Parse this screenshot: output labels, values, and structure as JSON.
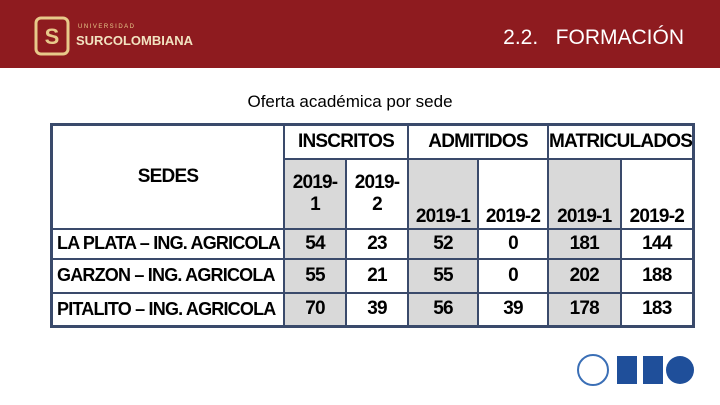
{
  "header": {
    "logo_small": "UNIVERSIDAD",
    "logo_name": "SURCOLOMBIANA",
    "title": "2.2.   FORMACIÓN"
  },
  "subtitle": "Oferta académica por sede",
  "table": {
    "sedes_header": "SEDES",
    "groups": [
      "INSCRITOS",
      "ADMITIDOS",
      "MATRICULADOS"
    ],
    "periods": [
      "2019-1",
      "2019-2",
      "2019-1",
      "2019-2",
      "2019-1",
      "2019-2"
    ],
    "rows": [
      [
        "LA PLATA – ING. AGRICOLA",
        54,
        23,
        52,
        0,
        181,
        144
      ],
      [
        "GARZON – ING. AGRICOLA",
        55,
        21,
        55,
        0,
        202,
        188
      ],
      [
        "PITALITO – ING. AGRICOLA",
        70,
        39,
        56,
        39,
        178,
        183
      ]
    ]
  }
}
